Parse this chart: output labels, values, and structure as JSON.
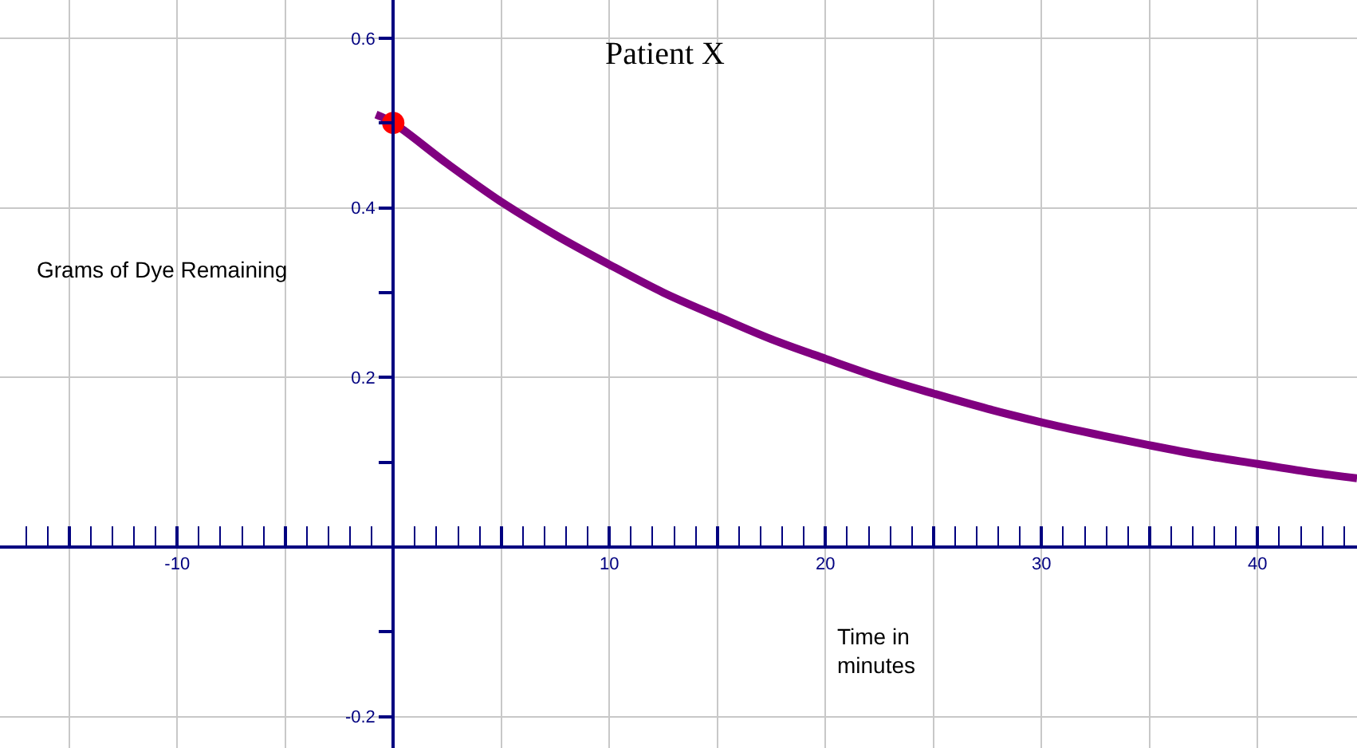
{
  "chart_data": {
    "type": "line",
    "title": "Patient X",
    "xlabel": "Time in\nminutes",
    "ylabel": "Grams of Dye Remaining",
    "xlim": [
      -18.2,
      44.6
    ],
    "ylim": [
      -0.237,
      0.645
    ],
    "xticks": [
      {
        "value": -17,
        "label": null
      },
      {
        "value": -16,
        "label": null
      },
      {
        "value": -15,
        "label": null
      },
      {
        "value": -14,
        "label": null
      },
      {
        "value": -13,
        "label": null
      },
      {
        "value": -12,
        "label": null
      },
      {
        "value": -11,
        "label": null
      },
      -10,
      {
        "value": -9,
        "label": null
      },
      {
        "value": -8,
        "label": null
      },
      {
        "value": -7,
        "label": null
      },
      {
        "value": -6,
        "label": null
      },
      {
        "value": -5,
        "label": null
      },
      {
        "value": -4,
        "label": null
      },
      {
        "value": -3,
        "label": null
      },
      {
        "value": -2,
        "label": null
      },
      {
        "value": -1,
        "label": null
      },
      {
        "value": 0,
        "label": null
      },
      {
        "value": 1,
        "label": null
      },
      {
        "value": 2,
        "label": null
      },
      {
        "value": 3,
        "label": null
      },
      {
        "value": 4,
        "label": null
      },
      {
        "value": 5,
        "label": null
      },
      {
        "value": 6,
        "label": null
      },
      {
        "value": 7,
        "label": null
      },
      {
        "value": 8,
        "label": null
      },
      {
        "value": 9,
        "label": null
      },
      10,
      {
        "value": 11,
        "label": null
      },
      {
        "value": 12,
        "label": null
      },
      {
        "value": 13,
        "label": null
      },
      {
        "value": 14,
        "label": null
      },
      {
        "value": 15,
        "label": null
      },
      {
        "value": 16,
        "label": null
      },
      {
        "value": 17,
        "label": null
      },
      {
        "value": 18,
        "label": null
      },
      {
        "value": 19,
        "label": null
      },
      20,
      {
        "value": 21,
        "label": null
      },
      {
        "value": 22,
        "label": null
      },
      {
        "value": 23,
        "label": null
      },
      {
        "value": 24,
        "label": null
      },
      {
        "value": 25,
        "label": null
      },
      {
        "value": 26,
        "label": null
      },
      {
        "value": 27,
        "label": null
      },
      {
        "value": 28,
        "label": null
      },
      {
        "value": 29,
        "label": null
      },
      30,
      {
        "value": 31,
        "label": null
      },
      {
        "value": 32,
        "label": null
      },
      {
        "value": 33,
        "label": null
      },
      {
        "value": 34,
        "label": null
      },
      {
        "value": 35,
        "label": null
      },
      {
        "value": 36,
        "label": null
      },
      {
        "value": 37,
        "label": null
      },
      {
        "value": 38,
        "label": null
      },
      {
        "value": 39,
        "label": null
      },
      40,
      {
        "value": 41,
        "label": null
      },
      {
        "value": 42,
        "label": null
      },
      {
        "value": 43,
        "label": null
      },
      {
        "value": 44,
        "label": null
      }
    ],
    "yticks": [
      -0.2,
      {
        "value": -0.1,
        "label": null
      },
      {
        "value": 0,
        "label": null
      },
      {
        "value": 0.1,
        "label": null
      },
      0.2,
      {
        "value": 0.3,
        "label": null
      },
      0.4,
      {
        "value": 0.5,
        "label": null
      },
      0.6
    ],
    "grid": true,
    "marker": "none",
    "line_style": "solid",
    "series": [
      {
        "color": "#800080",
        "x": [
          -0.8,
          0,
          2.5,
          5,
          7.5,
          10,
          12.5,
          15,
          17.5,
          20,
          22.5,
          25,
          27.5,
          30,
          32.5,
          35,
          37.5,
          40,
          42.5,
          44.6
        ],
        "values": [
          0.51,
          0.5,
          0.452,
          0.407,
          0.368,
          0.333,
          0.3,
          0.272,
          0.245,
          0.222,
          0.2,
          0.181,
          0.163,
          0.147,
          0.133,
          0.12,
          0.108,
          0.098,
          0.088,
          0.081
        ]
      },
      {
        "type": "scatter",
        "marker": "circle",
        "color": "#ff0000",
        "x": [
          0
        ],
        "values": [
          0.5
        ]
      }
    ]
  }
}
